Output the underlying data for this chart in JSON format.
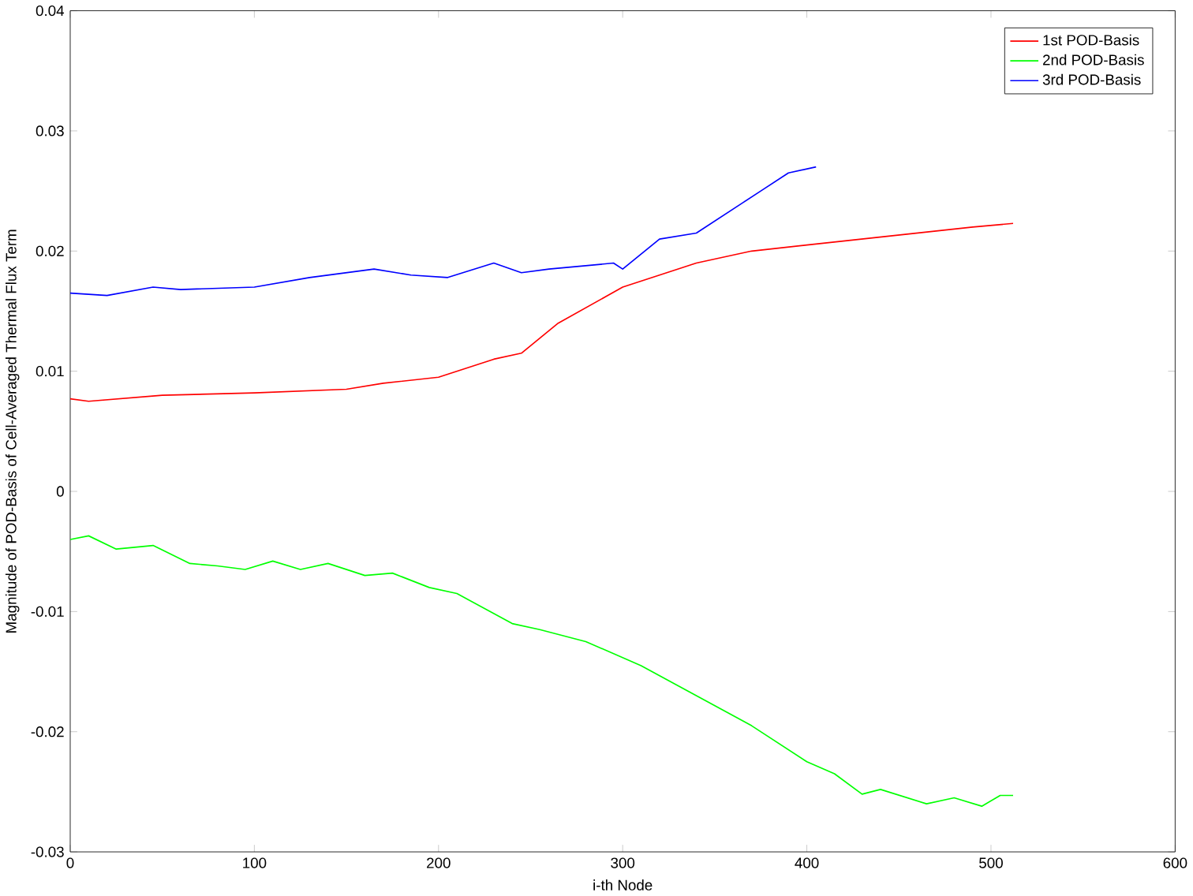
{
  "chart_data": {
    "type": "line",
    "xlabel": "i-th Node",
    "ylabel": "Magnitude of POD-Basis of Cell-Averaged Thermal Flux Term",
    "xlim": [
      0,
      600
    ],
    "ylim": [
      -0.03,
      0.04
    ],
    "xticks": [
      0,
      100,
      200,
      300,
      400,
      500,
      600
    ],
    "yticks": [
      -0.03,
      -0.02,
      -0.01,
      0,
      0.01,
      0.02,
      0.03,
      0.04
    ],
    "grid": false,
    "legend": "top right",
    "marker": "none",
    "line_style": "solid",
    "series": [
      {
        "name": "1st POD-Basis",
        "color": "#ff0000",
        "x": [
          0,
          10,
          50,
          100,
          150,
          170,
          200,
          230,
          245,
          265,
          300,
          340,
          370,
          400,
          430,
          460,
          490,
          512
        ],
        "values": [
          0.0077,
          0.0075,
          0.008,
          0.0082,
          0.0085,
          0.009,
          0.0095,
          0.011,
          0.0115,
          0.014,
          0.017,
          0.019,
          0.02,
          0.0205,
          0.021,
          0.0215,
          0.022,
          0.0223
        ]
      },
      {
        "name": "2nd POD-Basis",
        "color": "#00ff00",
        "x": [
          0,
          10,
          25,
          45,
          65,
          80,
          95,
          110,
          125,
          140,
          160,
          175,
          195,
          210,
          240,
          255,
          280,
          310,
          340,
          370,
          400,
          415,
          430,
          440,
          465,
          480,
          495,
          505,
          512
        ],
        "values": [
          -0.004,
          -0.0037,
          -0.0048,
          -0.0045,
          -0.006,
          -0.0062,
          -0.0065,
          -0.0058,
          -0.0065,
          -0.006,
          -0.007,
          -0.0068,
          -0.008,
          -0.0085,
          -0.011,
          -0.0115,
          -0.0125,
          -0.0145,
          -0.017,
          -0.0195,
          -0.0225,
          -0.0235,
          -0.0252,
          -0.0248,
          -0.026,
          -0.0255,
          -0.0262,
          -0.0253,
          -0.0253
        ]
      },
      {
        "name": "3rd POD-Basis",
        "color": "#0000ff",
        "x": [
          0,
          20,
          45,
          60,
          100,
          130,
          165,
          185,
          205,
          230,
          245,
          260,
          295,
          300,
          320,
          340,
          365,
          375,
          390,
          405
        ],
        "values": [
          0.0165,
          0.0163,
          0.017,
          0.0168,
          0.017,
          0.0178,
          0.0185,
          0.018,
          0.0178,
          0.019,
          0.0182,
          0.0185,
          0.019,
          0.0185,
          0.021,
          0.0215,
          0.024,
          0.025,
          0.0265,
          0.027
        ]
      }
    ]
  }
}
